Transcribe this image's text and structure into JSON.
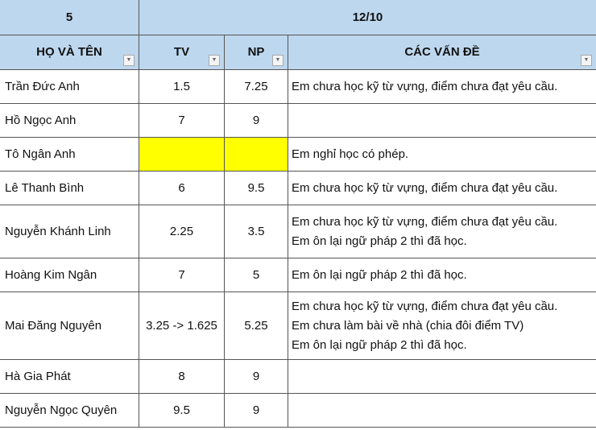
{
  "header": {
    "group_label": "5",
    "date_label": "12/10",
    "columns": [
      "HỌ VÀ TÊN",
      "TV",
      "NP",
      "CÁC VẤN ĐỀ"
    ]
  },
  "highlight_color": "#ffff00",
  "rows": [
    {
      "name": "Trần Đức Anh",
      "tv": "1.5",
      "np": "7.25",
      "issues": [
        "Em chưa học kỹ từ vựng, điểm chưa đạt yêu cầu."
      ],
      "h": 42
    },
    {
      "name": "Hồ Ngọc Anh",
      "tv": "7",
      "np": "9",
      "issues": [],
      "h": 42
    },
    {
      "name": "Tô Ngân Anh",
      "tv": "",
      "np": "",
      "issues": [
        "Em nghỉ học có phép."
      ],
      "h": 42,
      "highlight": true
    },
    {
      "name": "Lê Thanh Bình",
      "tv": "6",
      "np": "9.5",
      "issues": [
        "Em chưa học kỹ từ vựng, điểm chưa đạt yêu cầu."
      ],
      "h": 42
    },
    {
      "name": "Nguyễn Khánh Linh",
      "tv": "2.25",
      "np": "3.5",
      "issues": [
        "Em chưa học kỹ từ vựng, điểm chưa đạt yêu cầu.",
        "Em ôn lại ngữ pháp 2 thì đã học."
      ],
      "h": 66
    },
    {
      "name": "Hoàng Kim Ngân",
      "tv": "7",
      "np": "5",
      "issues": [
        "Em ôn lại ngữ pháp 2 thì đã học."
      ],
      "h": 42
    },
    {
      "name": "Mai Đăng Nguyên",
      "tv": "3.25 -> 1.625",
      "np": "5.25",
      "issues": [
        "Em chưa học kỹ từ vựng, điểm chưa đạt yêu cầu.",
        "Em chưa làm bài về nhà (chia đôi điểm TV)",
        "Em ôn lại ngữ pháp 2 thì đã học."
      ],
      "h": 84
    },
    {
      "name": "Hà Gia Phát",
      "tv": "8",
      "np": "9",
      "issues": [],
      "h": 42
    },
    {
      "name": "Nguyễn Ngọc Quyên",
      "tv": "9.5",
      "np": "9",
      "issues": [],
      "h": 42
    }
  ]
}
